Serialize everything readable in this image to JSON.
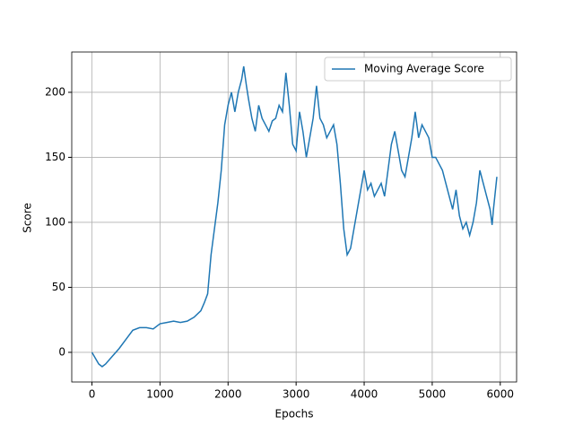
{
  "chart_data": {
    "type": "line",
    "xlabel": "Epochs",
    "ylabel": "Score",
    "x": [
      0,
      100,
      150,
      200,
      300,
      400,
      500,
      600,
      700,
      800,
      900,
      1000,
      1100,
      1200,
      1300,
      1400,
      1500,
      1600,
      1650,
      1700,
      1750,
      1800,
      1850,
      1900,
      1950,
      2000,
      2050,
      2100,
      2150,
      2200,
      2230,
      2270,
      2300,
      2350,
      2400,
      2450,
      2500,
      2550,
      2600,
      2650,
      2700,
      2750,
      2800,
      2850,
      2900,
      2950,
      3000,
      3050,
      3100,
      3150,
      3200,
      3250,
      3300,
      3350,
      3400,
      3450,
      3500,
      3550,
      3600,
      3650,
      3700,
      3750,
      3800,
      3850,
      3900,
      3950,
      4000,
      4050,
      4100,
      4150,
      4200,
      4250,
      4300,
      4350,
      4400,
      4450,
      4500,
      4550,
      4600,
      4650,
      4700,
      4750,
      4800,
      4850,
      4900,
      4950,
      5000,
      5050,
      5100,
      5150,
      5200,
      5250,
      5300,
      5350,
      5400,
      5450,
      5500,
      5550,
      5600,
      5650,
      5700,
      5750,
      5800,
      5850,
      5880,
      5900,
      5950
    ],
    "series": [
      {
        "name": "Moving Average Score",
        "color": "#1f77b4",
        "values": [
          0,
          -9,
          -11,
          -9,
          -3,
          3,
          10,
          17,
          19,
          19,
          18,
          22,
          23,
          24,
          23,
          24,
          27,
          32,
          38,
          45,
          75,
          95,
          115,
          140,
          175,
          190,
          200,
          185,
          200,
          210,
          220,
          205,
          195,
          180,
          170,
          190,
          180,
          175,
          170,
          178,
          180,
          190,
          185,
          215,
          190,
          160,
          155,
          185,
          170,
          150,
          165,
          180,
          205,
          180,
          175,
          165,
          170,
          175,
          160,
          130,
          95,
          75,
          80,
          95,
          110,
          125,
          140,
          125,
          130,
          120,
          125,
          130,
          120,
          140,
          160,
          170,
          155,
          140,
          135,
          150,
          165,
          185,
          165,
          175,
          170,
          165,
          150,
          150,
          145,
          140,
          130,
          120,
          110,
          125,
          105,
          95,
          100,
          90,
          100,
          115,
          140,
          130,
          120,
          110,
          98,
          110,
          135
        ]
      }
    ],
    "xlim": [
      -297,
      6240
    ],
    "ylim": [
      -22.8,
      231
    ],
    "xticks": [
      0,
      1000,
      2000,
      3000,
      4000,
      5000,
      6000
    ],
    "yticks": [
      0,
      50,
      100,
      150,
      200
    ],
    "grid": true,
    "legend": "upper right"
  }
}
